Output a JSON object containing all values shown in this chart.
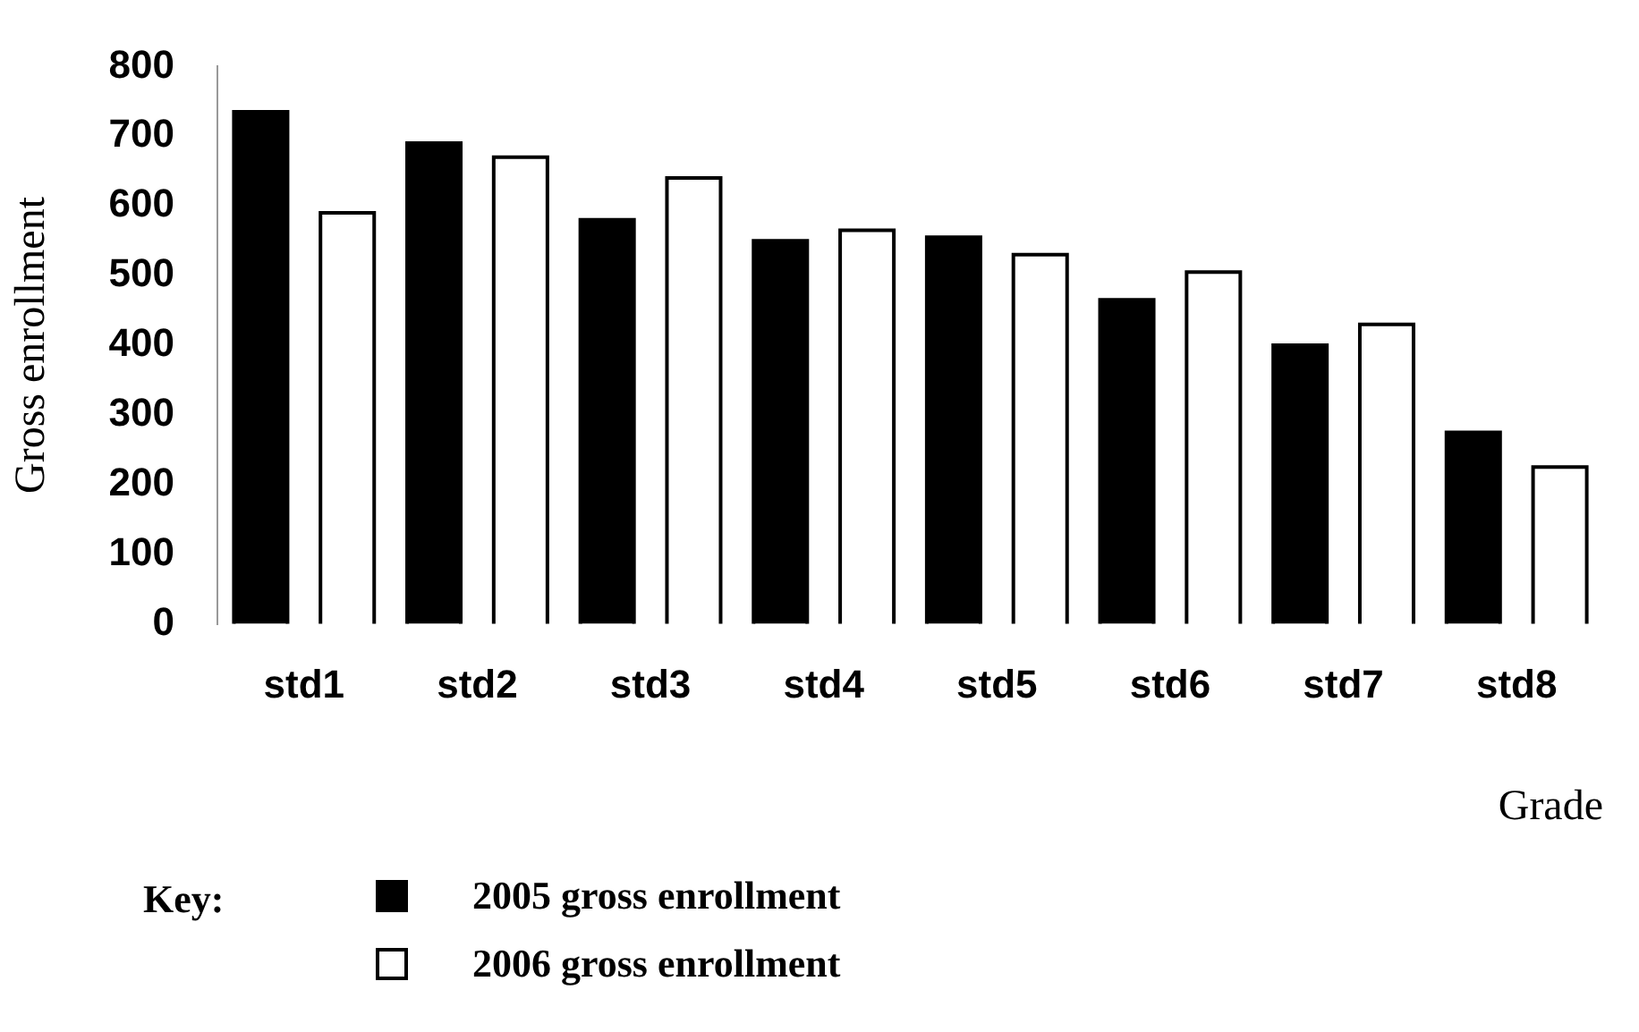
{
  "chart_data": {
    "type": "bar",
    "xlabel": "Grade",
    "ylabel": "Gross enrollment",
    "legend_title": "Key:",
    "legend": "bottom left",
    "grid": false,
    "categories": [
      "std1",
      "std2",
      "std3",
      "std4",
      "std5",
      "std6",
      "std7",
      "std8"
    ],
    "ylim": [
      0,
      800
    ],
    "yticks": [
      0,
      100,
      200,
      300,
      400,
      500,
      600,
      700,
      800
    ],
    "series": [
      {
        "name": "2005 gross enrollment",
        "color": "#000000",
        "values": [
          735,
          690,
          580,
          550,
          555,
          465,
          400,
          275
        ]
      },
      {
        "name": "2006 gross enrollment",
        "color": "#ffffff",
        "values": [
          590,
          670,
          640,
          565,
          530,
          505,
          430,
          225
        ]
      }
    ]
  }
}
